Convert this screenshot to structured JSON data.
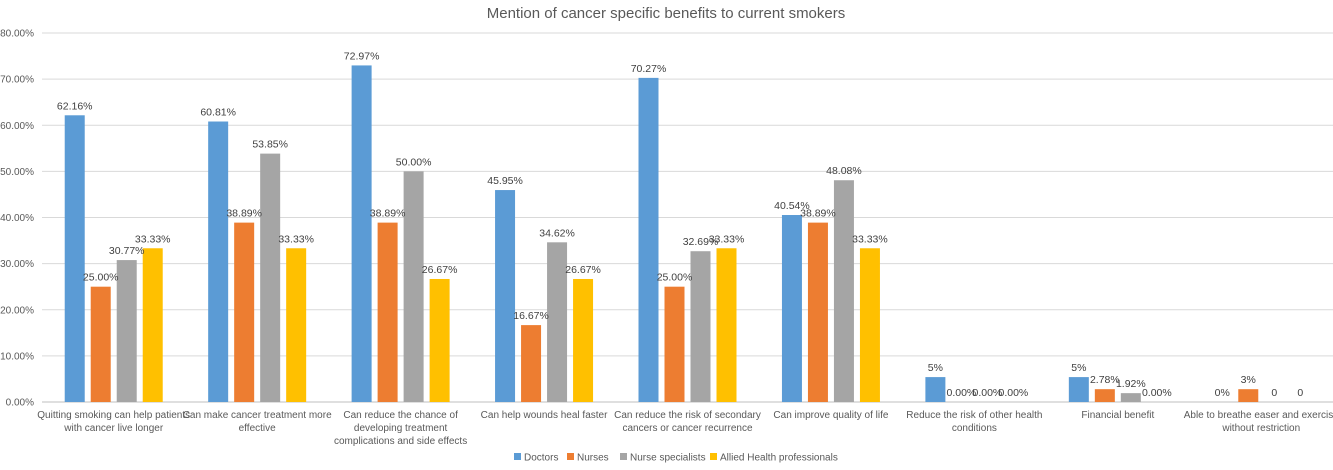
{
  "chart_data": {
    "type": "bar",
    "title": "Mention of cancer specific benefits to current smokers",
    "xlabel": "",
    "ylabel": "",
    "ylim": [
      0,
      80
    ],
    "y_ticks": [
      "0.00%",
      "10.00%",
      "20.00%",
      "30.00%",
      "40.00%",
      "50.00%",
      "60.00%",
      "70.00%",
      "80.00%"
    ],
    "grid": true,
    "legend_position": "bottom",
    "categories": [
      [
        "Quitting smoking can help patients",
        "with cancer live longer"
      ],
      [
        "Can make cancer treatment more",
        "effective"
      ],
      [
        "Can reduce the chance of",
        "developing treatment",
        "complications and side effects"
      ],
      [
        "Can help wounds heal faster"
      ],
      [
        "Can reduce the risk of secondary",
        "cancers or cancer recurrence"
      ],
      [
        "Can improve quality of life"
      ],
      [
        "Reduce the risk of other health",
        "conditions"
      ],
      [
        "Financial benefit"
      ],
      [
        "Able to breathe easer and exercise",
        "without restriction"
      ]
    ],
    "series": [
      {
        "name": "Doctors",
        "color": "#5B9BD5",
        "values": [
          62.16,
          60.81,
          72.97,
          45.95,
          70.27,
          40.54,
          5.4,
          5.4,
          null
        ],
        "labels": [
          "62.16%",
          "60.81%",
          "72.97%",
          "45.95%",
          "70.27%",
          "40.54%",
          "5%",
          "5%",
          "0%"
        ]
      },
      {
        "name": "Nurses",
        "color": "#ED7D31",
        "values": [
          25.0,
          38.89,
          38.89,
          16.67,
          25.0,
          38.89,
          0,
          2.78,
          2.78
        ],
        "labels": [
          "25.00%",
          "38.89%",
          "38.89%",
          "16.67%",
          "25.00%",
          "38.89%",
          "0.00%",
          "2.78%",
          "3%"
        ]
      },
      {
        "name": "Nurse specialists",
        "color": "#A5A5A5",
        "values": [
          30.77,
          53.85,
          50.0,
          34.62,
          32.69,
          48.08,
          0,
          1.92,
          0
        ],
        "labels": [
          "30.77%",
          "53.85%",
          "50.00%",
          "34.62%",
          "32.69%",
          "48.08%",
          "0.00%",
          "1.92%",
          "0"
        ]
      },
      {
        "name": "Allied Health professionals",
        "color": "#FFC000",
        "values": [
          33.33,
          33.33,
          26.67,
          26.67,
          33.33,
          33.33,
          0,
          0,
          0
        ],
        "labels": [
          "33.33%",
          "33.33%",
          "26.67%",
          "26.67%",
          "33.33%",
          "33.33%",
          "0.00%",
          "0.00%",
          "0"
        ]
      }
    ]
  }
}
